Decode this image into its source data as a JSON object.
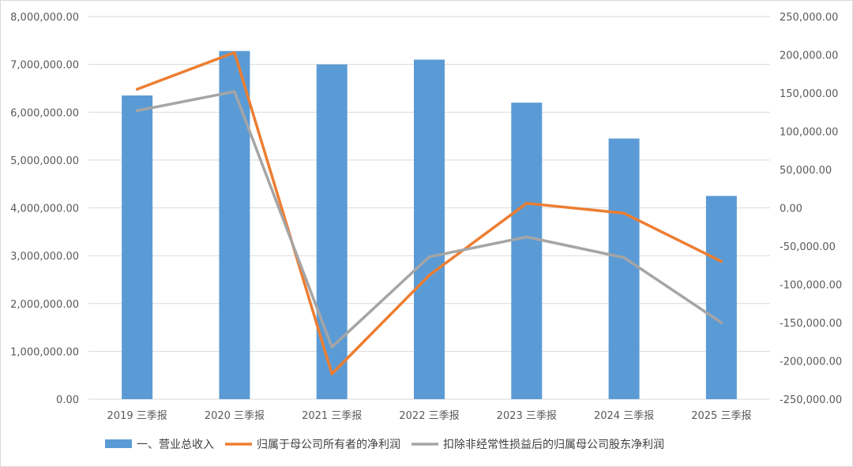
{
  "chart_data": {
    "type": "bar+line",
    "categories": [
      "2019 三季报",
      "2020 三季报",
      "2021 三季报",
      "2022 三季报",
      "2023 三季报",
      "2024 三季报",
      "2025 三季报"
    ],
    "series": [
      {
        "name": "一、营业总收入",
        "type": "bar",
        "axis": "left",
        "color": "#5b9bd5",
        "values": [
          6350000,
          7280000,
          7000000,
          7100000,
          6200000,
          5450000,
          4250000
        ]
      },
      {
        "name": "归属于母公司所有者的净利润",
        "type": "line",
        "axis": "right",
        "color": "#ed7d31",
        "values": [
          155000,
          203000,
          -217000,
          -88000,
          6000,
          -7000,
          -70000
        ]
      },
      {
        "name": "扣除非经常性损益后的归属母公司股东净利润",
        "type": "line",
        "axis": "right",
        "color": "#a5a5a5",
        "values": [
          127000,
          152000,
          -182000,
          -64000,
          -38000,
          -65000,
          -150000
        ]
      }
    ],
    "left_axis": {
      "min": 0,
      "max": 8000000,
      "step": 1000000,
      "ticks": [
        "0.00",
        "1,000,000.00",
        "2,000,000.00",
        "3,000,000.00",
        "4,000,000.00",
        "5,000,000.00",
        "6,000,000.00",
        "7,000,000.00",
        "8,000,000.00"
      ]
    },
    "right_axis": {
      "min": -250000,
      "max": 250000,
      "step": 50000,
      "ticks": [
        "-250,000.00",
        "-200,000.00",
        "-150,000.00",
        "-100,000.00",
        "-50,000.00",
        "0.00",
        "50,000.00",
        "100,000.00",
        "150,000.00",
        "200,000.00",
        "250,000.00"
      ]
    },
    "grid": true,
    "legend_position": "bottom"
  }
}
